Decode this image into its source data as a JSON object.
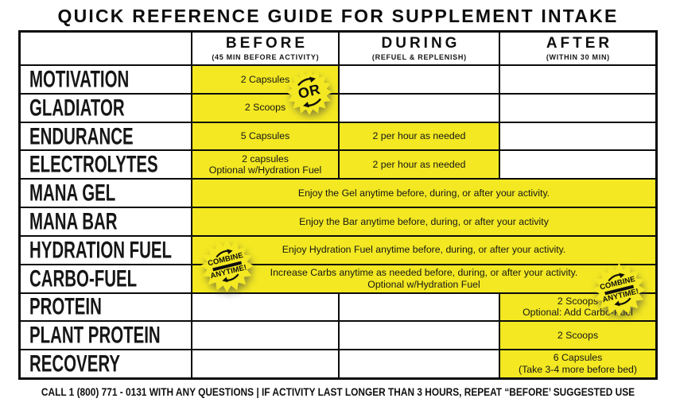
{
  "title": "QUICK REFERENCE GUIDE FOR SUPPLEMENT INTAKE",
  "columns": [
    {
      "label": "BEFORE",
      "sub": "(45 MIN BEFORE ACTIVITY)"
    },
    {
      "label": "DURING",
      "sub": "(REFUEL & REPLENISH)"
    },
    {
      "label": "AFTER",
      "sub": "(WITHIN 30 MIN)"
    }
  ],
  "rows": [
    {
      "label": "MOTIVATION",
      "before": [
        "2 Capsules"
      ],
      "during": [],
      "after": []
    },
    {
      "label": "GLADIATOR",
      "before": [
        "2 Scoops"
      ],
      "during": [],
      "after": []
    },
    {
      "label": "ENDURANCE",
      "before": [
        "5 Capsules"
      ],
      "during": [
        "2 per hour as needed"
      ],
      "after": []
    },
    {
      "label": "ELECTROLYTES",
      "before": [
        "2 capsules",
        "Optional w/Hydration Fuel"
      ],
      "during": [
        "2 per hour as needed"
      ],
      "after": []
    },
    {
      "label": "MANA GEL",
      "span": [
        "Enjoy the Gel anytime before, during, or after your activity."
      ]
    },
    {
      "label": "MANA BAR",
      "span": [
        "Enjoy the Bar anytime before, during, or after your activity"
      ]
    },
    {
      "label": "HYDRATION FUEL",
      "span": [
        "Enjoy Hydration Fuel anytime before, during, or after your activity."
      ]
    },
    {
      "label": "CARBO-FUEL",
      "span": [
        "Increase Carbs anytime as needed before, during, or after your activity.",
        "Optional w/Hydration Fuel"
      ]
    },
    {
      "label": "PROTEIN",
      "before": [],
      "during": [],
      "after": [
        "2 Scoops",
        "Optional: Add Carbo-Fuel"
      ]
    },
    {
      "label": "PLANT PROTEIN",
      "before": [],
      "during": [],
      "after": [
        "2 Scoops"
      ]
    },
    {
      "label": "RECOVERY",
      "before": [],
      "during": [],
      "after": [
        "6 Capsules",
        "(Take 3-4 more before bed)"
      ]
    }
  ],
  "badges": {
    "or": "OR",
    "combine_top": "COMBINE",
    "combine_bottom": "ANYTIME!"
  },
  "footer": "CALL 1 (800) 771 - 0131 WITH ANY QUESTIONS | IF ACTIVITY LAST LONGER THAN 3 HOURS, REPEAT “BEFORE’ SUGGESTED USE",
  "colors": {
    "highlight": "#F3E822",
    "border": "#0B0B0B",
    "text": "#141414"
  }
}
